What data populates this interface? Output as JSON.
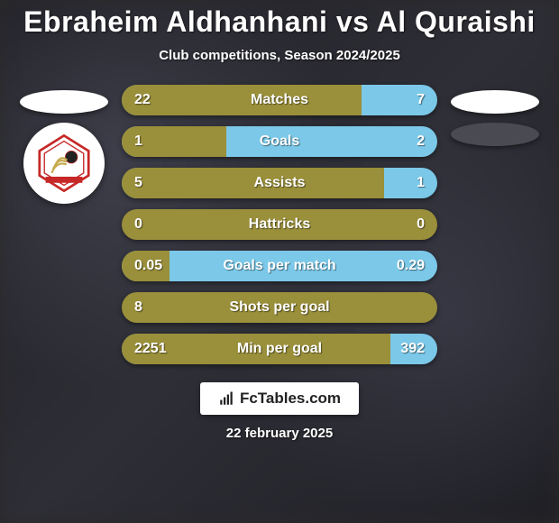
{
  "title": "Ebraheim Aldhanhani vs Al Quraishi",
  "subtitle": "Club competitions, Season 2024/2025",
  "date": "22 february 2025",
  "logo_text": "FcTables.com",
  "colors": {
    "player1_bar": "#9a8f3a",
    "player2_bar": "#7bc8e8",
    "background_bar": "#9a8f3a",
    "flag1": "#ffffff",
    "flag2": "#4a4a52",
    "badge_bg": "#ffffff"
  },
  "left": {
    "flag_color": "#ffffff",
    "badge_colors": {
      "outer": "#c62828",
      "inner": "#e8d090"
    }
  },
  "right": {
    "flag_color1": "#ffffff",
    "flag_color2": "#4a4a52"
  },
  "stats": [
    {
      "label": "Matches",
      "l": "22",
      "r": "7",
      "lw": 76,
      "rw": 24,
      "mode": "split"
    },
    {
      "label": "Goals",
      "l": "1",
      "r": "2",
      "lw": 33,
      "rw": 67,
      "mode": "split"
    },
    {
      "label": "Assists",
      "l": "5",
      "r": "1",
      "lw": 83,
      "rw": 17,
      "mode": "split"
    },
    {
      "label": "Hattricks",
      "l": "0",
      "r": "0",
      "lw": 50,
      "rw": 50,
      "mode": "solid1"
    },
    {
      "label": "Goals per match",
      "l": "0.05",
      "r": "0.29",
      "lw": 15,
      "rw": 85,
      "mode": "split"
    },
    {
      "label": "Shots per goal",
      "l": "8",
      "r": "",
      "lw": 100,
      "rw": 0,
      "mode": "solid1"
    },
    {
      "label": "Min per goal",
      "l": "2251",
      "r": "392",
      "lw": 85,
      "rw": 15,
      "mode": "split"
    }
  ]
}
